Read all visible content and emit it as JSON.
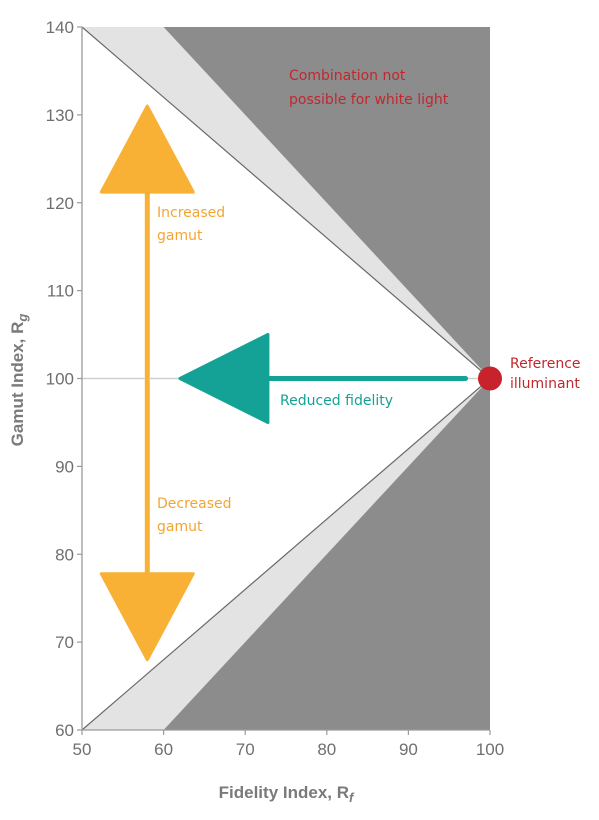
{
  "chart_data": {
    "type": "scatter",
    "title": "",
    "xlabel": "Fidelity Index, R",
    "xlabel_sub": "f",
    "ylabel": "Gamut Index, R",
    "ylabel_sub": "g",
    "xlim": [
      50,
      100
    ],
    "ylim": [
      60,
      140
    ],
    "x_ticks": [
      50,
      60,
      70,
      80,
      90,
      100
    ],
    "y_ticks": [
      60,
      70,
      80,
      90,
      100,
      110,
      120,
      130,
      140
    ],
    "grid": false,
    "reference_line_y": 100,
    "regions": {
      "impossible": {
        "upper_boundary": [
          [
            50,
            140
          ],
          [
            100,
            100
          ]
        ],
        "lower_boundary": [
          [
            50,
            60
          ],
          [
            100,
            100
          ]
        ],
        "color": "#8c8c8c"
      },
      "transition": {
        "upper_boundary": [
          [
            60,
            140
          ],
          [
            100,
            100
          ]
        ],
        "lower_boundary": [
          [
            60,
            60
          ],
          [
            100,
            100
          ]
        ],
        "color": "#e3e3e3"
      }
    },
    "reference_point": {
      "x": 100,
      "y": 100,
      "color": "#c8232c"
    },
    "arrows": [
      {
        "kind": "up",
        "x": 58,
        "from_y": 100,
        "to_y": 131,
        "color": "#f8b135"
      },
      {
        "kind": "down",
        "x": 58,
        "from_y": 100,
        "to_y": 68,
        "color": "#f8b135"
      },
      {
        "kind": "left",
        "y": 100,
        "from_x": 97,
        "to_x": 62,
        "color": "#13a295"
      }
    ],
    "annotations": [
      {
        "id": "impossible",
        "lines": [
          "Combination not",
          "possible for white light"
        ],
        "color": "#c0282e"
      },
      {
        "id": "reference",
        "lines": [
          "Reference",
          "illuminant"
        ],
        "color": "#c0282e"
      },
      {
        "id": "increased",
        "lines": [
          "Increased",
          "gamut"
        ],
        "color": "#f3a532"
      },
      {
        "id": "decreased",
        "lines": [
          "Decreased",
          "gamut"
        ],
        "color": "#f3a532"
      },
      {
        "id": "reduced",
        "lines": [
          "Reduced fidelity"
        ],
        "color": "#13a295"
      }
    ]
  }
}
